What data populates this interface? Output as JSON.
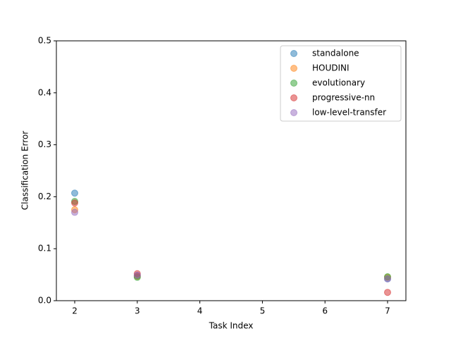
{
  "chart_data": {
    "type": "scatter",
    "x_label": "Task Index",
    "y_label": "Classification Error",
    "x": [
      2,
      3,
      7
    ],
    "series": [
      {
        "name": "standalone",
        "color": "#1f77b4",
        "values": [
          0.207,
          0.048,
          0.042
        ]
      },
      {
        "name": "HOUDINI",
        "color": "#ff7f0e",
        "values": [
          0.175,
          0.047,
          0.045
        ]
      },
      {
        "name": "evolutionary",
        "color": "#2ca02c",
        "values": [
          0.191,
          0.045,
          0.046
        ]
      },
      {
        "name": "progressive-nn",
        "color": "#d62728",
        "values": [
          0.188,
          0.052,
          0.016
        ]
      },
      {
        "name": "low-level-transfer",
        "color": "#9467bd",
        "values": [
          0.17,
          0.049,
          0.042
        ]
      }
    ],
    "xlim": [
      1.707,
      7.293
    ],
    "xticks": [
      2,
      3,
      4,
      5,
      6,
      7
    ],
    "ylim": [
      0,
      0.5
    ],
    "yticks": [
      {
        "value": 0,
        "label": "0.0"
      },
      0.1,
      0.2,
      0.3,
      0.4,
      0.5
    ],
    "marker_opacity": 0.5,
    "legend": "upper-right"
  }
}
